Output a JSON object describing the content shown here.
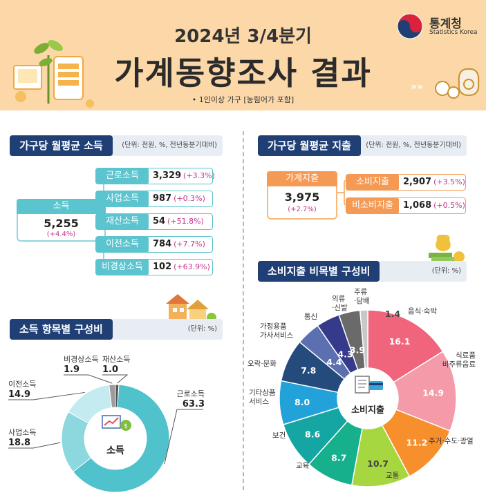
{
  "header": {
    "year_title": "2024년 3/4분기",
    "main_title": "가계동향조사 결과",
    "note": "• 1인이상 가구 [농림어가 포함]",
    "org_name": "통계청",
    "org_name_en": "Statistics Korea"
  },
  "income": {
    "title": "가구당 월평균 소득",
    "unit": "(단위: 천원, %, 전년동분기대비)",
    "total": {
      "label": "소득",
      "value": "5,255",
      "change": "(+4.4%)"
    },
    "items": [
      {
        "label": "근로소득",
        "value": "3,329",
        "change": "(+3.3%)"
      },
      {
        "label": "사업소득",
        "value": "987",
        "change": "(+0.3%)"
      },
      {
        "label": "재산소득",
        "value": "54",
        "change": "(+51.8%)"
      },
      {
        "label": "이전소득",
        "value": "784",
        "change": "(+7.7%)"
      },
      {
        "label": "비경상소득",
        "value": "102",
        "change": "(+63.9%)"
      }
    ]
  },
  "expenditure": {
    "title": "가구당 월평균 지출",
    "unit": "(단위: 천원, %, 전년동분기대비)",
    "total": {
      "label": "가계지출",
      "value": "3,975",
      "change": "(+2.7%)"
    },
    "items": [
      {
        "label": "소비지출",
        "value": "2,907",
        "change": "(+3.5%)"
      },
      {
        "label": "비소비지출",
        "value": "1,068",
        "change": "(+0.5%)"
      }
    ]
  },
  "chart_data": [
    {
      "type": "pie",
      "title": "소득 항목별 구성비",
      "unit": "(단위: %)",
      "center_label": "소득",
      "categories": [
        "근로소득",
        "사업소득",
        "이전소득",
        "비경상소득",
        "재산소득"
      ],
      "values": [
        63.3,
        18.8,
        14.9,
        1.9,
        1.0
      ],
      "value_labels": [
        "63.3",
        "18.8",
        "14.9",
        "1.9",
        "1.0"
      ],
      "colors": [
        "#4fc2cc",
        "#8cd8de",
        "#c4ebef",
        "#9c9c9c",
        "#555555"
      ]
    },
    {
      "type": "pie",
      "title": "소비지출 비목별 구성비",
      "unit": "(단위: %)",
      "center_label": "소비지출",
      "categories": [
        "음식·숙박",
        "식료품 비주류음료",
        "주거·수도·광열",
        "교통",
        "교육",
        "보건",
        "기타상품 서비스",
        "오락·문화",
        "가정용품 가사서비스",
        "통신",
        "의류 ·신발",
        "주류 ·담배"
      ],
      "values": [
        16.1,
        14.9,
        11.2,
        10.7,
        8.7,
        8.6,
        8.0,
        7.8,
        4.4,
        4.3,
        3.9,
        1.4
      ],
      "value_labels": [
        "16.1",
        "14.9",
        "11.2",
        "10.7",
        "8.7",
        "8.6",
        "8.0",
        "7.8",
        "4.4",
        "4.3",
        "3.9",
        "1.4"
      ],
      "colors": [
        "#f0647c",
        "#f49aa8",
        "#f7902c",
        "#a6d640",
        "#17b08c",
        "#15a6a3",
        "#22a2d9",
        "#244b7b",
        "#5b6fb1",
        "#363a8a",
        "#6a6a6a",
        "#c8c8c8"
      ]
    }
  ]
}
